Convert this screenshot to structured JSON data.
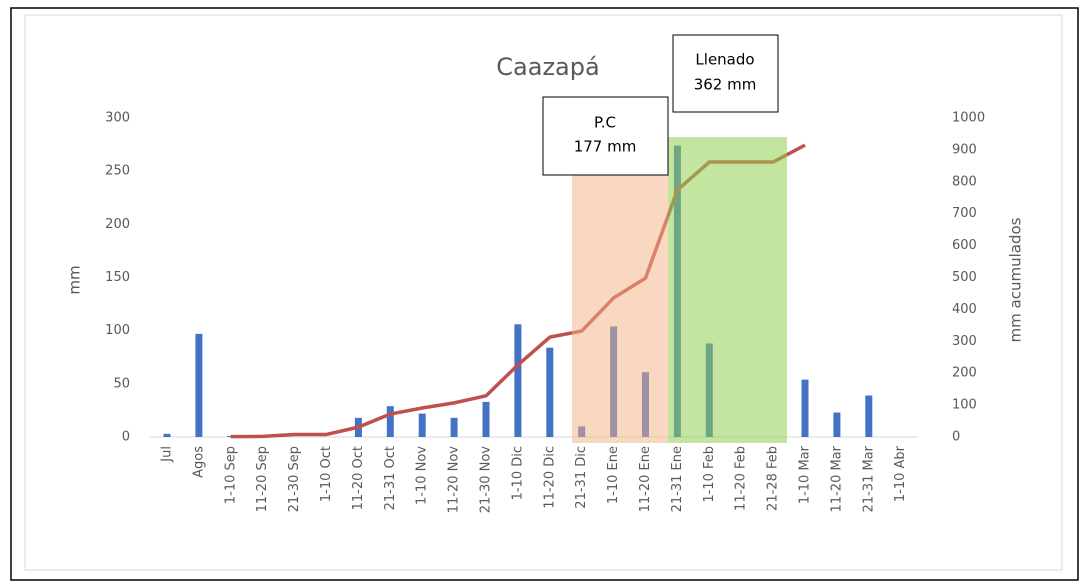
{
  "chart_data": {
    "type": "bar_line",
    "title": "Caazapá",
    "y_label": "mm",
    "y2_label": "mm acumulados",
    "categories": [
      "Jul",
      "Agos",
      "1-10 Sep",
      "11-20 Sep",
      "21-30 Sep",
      "1-10 Oct",
      "11-20 Oct",
      "21-31 Oct",
      "1-10 Nov",
      "11-20 Nov",
      "21-30 Nov",
      "1-10 Dic",
      "11-20 Dic",
      "21-31 Dic",
      "1-10 Ene",
      "11-20 Ene",
      "21-31 Ene",
      "1-10 Feb",
      "11-20 Feb",
      "21-28 Feb",
      "1-10 Mar",
      "11-20 Mar",
      "21-31 Mar",
      "1-10 Abr"
    ],
    "series": [
      {
        "name": "mm",
        "type": "bar",
        "color": "#4472c4",
        "values": [
          3,
          97,
          1,
          0,
          0,
          0,
          18,
          29,
          22,
          18,
          33,
          106,
          84,
          10,
          104,
          61,
          274,
          88,
          0,
          0,
          54,
          23,
          39,
          0
        ]
      },
      {
        "name": "mm acumulados",
        "type": "line",
        "axis": "y2",
        "color": "#c0504d",
        "values": [
          null,
          null,
          1,
          2,
          8,
          8,
          31,
          72,
          91,
          107,
          129,
          226,
          313,
          332,
          436,
          498,
          774,
          862,
          862,
          862,
          915,
          null,
          null,
          null
        ]
      }
    ],
    "ylim": [
      0,
      300
    ],
    "yticks": [
      0,
      50,
      100,
      150,
      200,
      250,
      300
    ],
    "y2lim": [
      0,
      1000
    ],
    "y2ticks": [
      0,
      100,
      200,
      300,
      400,
      500,
      600,
      700,
      800,
      900,
      1000
    ],
    "annotations": [
      {
        "lines": [
          "P.C",
          "177 mm"
        ]
      },
      {
        "lines": [
          "Llenado",
          "362 mm"
        ]
      }
    ]
  }
}
